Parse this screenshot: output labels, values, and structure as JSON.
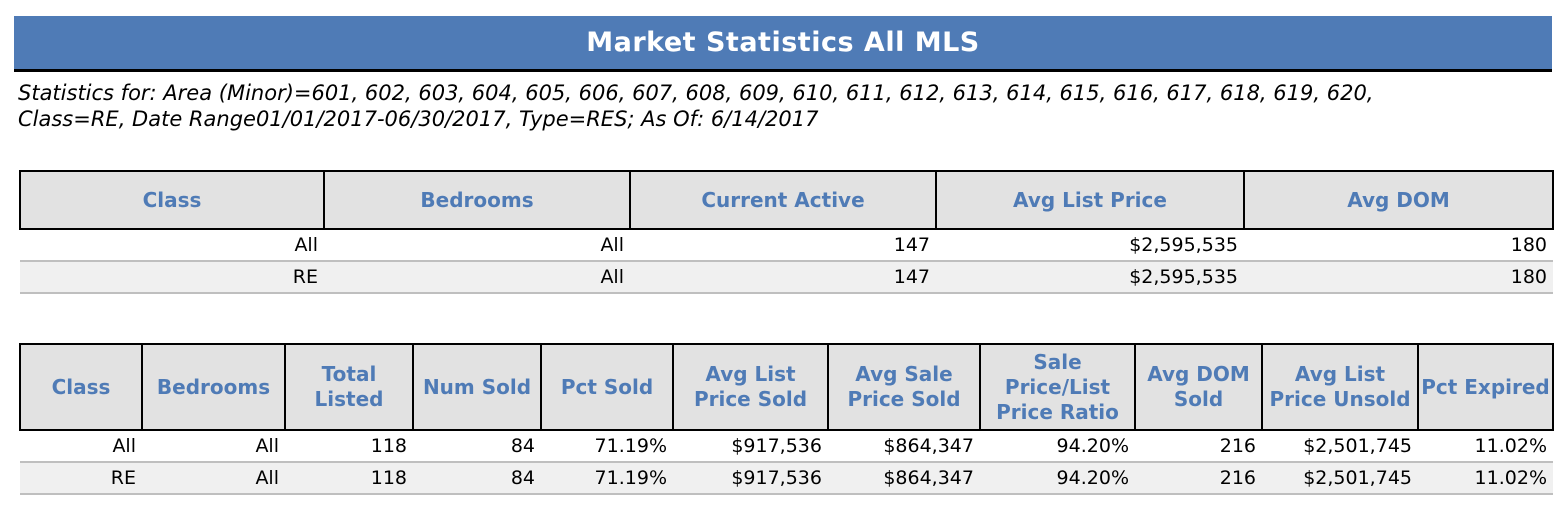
{
  "title": "Market Statistics All MLS",
  "subtitle": {
    "line1": "Statistics for: Area (Minor)=601, 602, 603, 604, 605, 606, 607, 608, 609, 610, 611, 612, 613, 614, 615, 616, 617, 618, 619, 620,",
    "line2": "Class=RE, Date Range01/01/2017-06/30/2017, Type=RES; As Of: 6/14/2017"
  },
  "active_table": {
    "headers": [
      "Class",
      "Bedrooms",
      "Current Active",
      "Avg List Price",
      "Avg DOM"
    ],
    "rows": [
      [
        "All",
        "All",
        "147",
        "$2,595,535",
        "180"
      ],
      [
        "RE",
        "All",
        "147",
        "$2,595,535",
        "180"
      ]
    ]
  },
  "sold_table": {
    "headers": [
      "Class",
      "Bedrooms",
      "Total Listed",
      "Num Sold",
      "Pct Sold",
      "Avg List Price Sold",
      "Avg Sale Price Sold",
      "Sale Price/List Price Ratio",
      "Avg DOM Sold",
      "Avg List Price Unsold",
      "Pct Expired"
    ],
    "rows": [
      [
        "All",
        "All",
        "118",
        "84",
        "71.19%",
        "$917,536",
        "$864,347",
        "94.20%",
        "216",
        "$2,501,745",
        "11.02%"
      ],
      [
        "RE",
        "All",
        "118",
        "84",
        "71.19%",
        "$917,536",
        "$864,347",
        "94.20%",
        "216",
        "$2,501,745",
        "11.02%"
      ]
    ]
  },
  "colors": {
    "title_bar": "#4f7bb6",
    "header_text": "#4f7bb6",
    "header_bg": "#e2e2e2"
  }
}
